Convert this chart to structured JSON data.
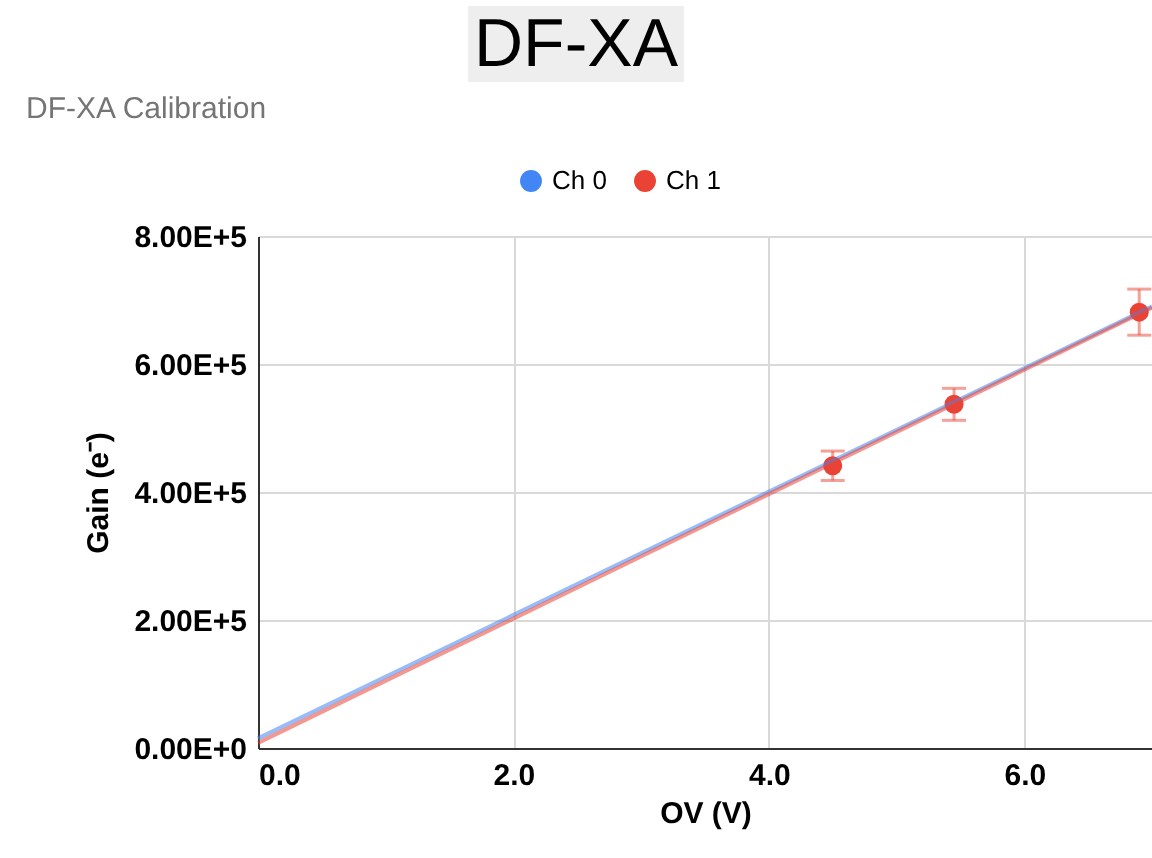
{
  "chart_data": {
    "type": "scatter",
    "title": "DF-XA",
    "subtitle": "DF-XA Calibration",
    "xlabel": "OV (V)",
    "ylabel": "Gain (e⁻)",
    "xlim": [
      0,
      7
    ],
    "xticks": [
      {
        "value": 0,
        "label": "0.0"
      },
      {
        "value": 2,
        "label": "2.0"
      },
      {
        "value": 4,
        "label": "4.0"
      },
      {
        "value": 6,
        "label": "6.0"
      }
    ],
    "ylim": [
      0,
      800000
    ],
    "yticks": [
      {
        "value": 0,
        "label": "0.00E+0"
      },
      {
        "value": 200000,
        "label": "2.00E+5"
      },
      {
        "value": 400000,
        "label": "4.00E+5"
      },
      {
        "value": 600000,
        "label": "6.00E+5"
      },
      {
        "value": 800000,
        "label": "8.00E+5"
      }
    ],
    "grid": true,
    "legend": "top",
    "series": [
      {
        "name": "Ch 0",
        "color": "#4285f4",
        "marker": "circle"
      },
      {
        "name": "Ch 1",
        "color": "#ea4335",
        "marker": "circle",
        "x": [
          4.5,
          5.45,
          6.9
        ],
        "values": [
          441000,
          537000,
          681000
        ],
        "errors": [
          23000,
          25000,
          36000
        ]
      },
      {
        "type": "line",
        "color": "#4285f4",
        "x": [
          0,
          7
        ],
        "values": [
          15000,
          690000
        ]
      },
      {
        "type": "line",
        "color": "#ea4335",
        "x": [
          0,
          7
        ],
        "values": [
          8000,
          688000
        ]
      }
    ]
  }
}
